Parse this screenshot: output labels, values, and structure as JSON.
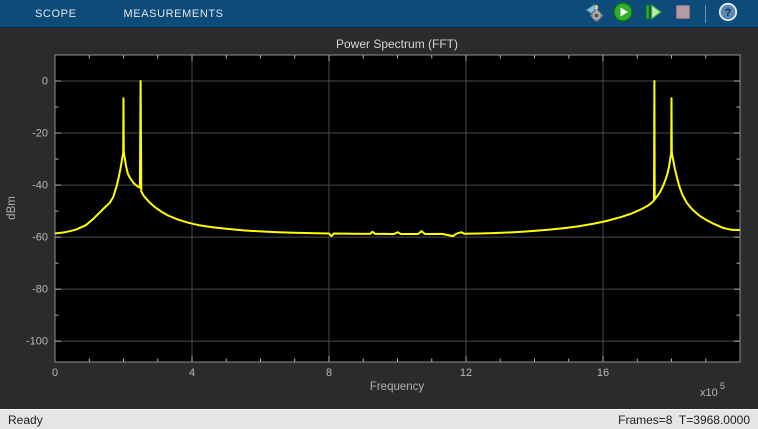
{
  "toolbar": {
    "tabs": [
      {
        "label": "SCOPE"
      },
      {
        "label": "MEASUREMENTS"
      }
    ],
    "buttons": [
      {
        "name": "step-back-settings",
        "icon": "step-back-gear-icon"
      },
      {
        "name": "run",
        "icon": "play-icon"
      },
      {
        "name": "step-forward",
        "icon": "step-forward-icon"
      },
      {
        "name": "stop",
        "icon": "stop-icon",
        "disabled": true
      },
      {
        "name": "help",
        "icon": "help-icon",
        "glyph": "?"
      }
    ]
  },
  "chart_data": {
    "type": "line",
    "title": "Power Spectrum (FFT)",
    "xlabel": "Frequency",
    "ylabel": "dBm",
    "x_multiplier_label": "x10",
    "x_multiplier_exp": "5",
    "xlim": [
      0,
      20
    ],
    "ylim": [
      -108,
      10
    ],
    "xticks": [
      0,
      4,
      8,
      12,
      16
    ],
    "yticks": [
      0,
      -20,
      -40,
      -60,
      -80,
      -100
    ],
    "x_minor_step": 1,
    "y_minor_step": 10,
    "grid": true,
    "legend": "none",
    "line_color": "#ffff00",
    "colors": {
      "plot_bg": "#000000",
      "figure_bg": "#2b2b2b",
      "grid": "#4a4a4a",
      "axis": "#8f8f8f",
      "tick": "#b0b0b0"
    },
    "series": [
      {
        "name": "power-spectrum-trace",
        "points": [
          [
            0,
            -58.6
          ],
          [
            0.3,
            -58.1
          ],
          [
            0.6,
            -57.2
          ],
          [
            0.9,
            -55.4
          ],
          [
            1.1,
            -53.2
          ],
          [
            1.3,
            -50.6
          ],
          [
            1.45,
            -48.6
          ],
          [
            1.6,
            -46.8
          ],
          [
            1.7,
            -44.6
          ],
          [
            1.8,
            -40.3
          ],
          [
            1.87,
            -36.5
          ],
          [
            1.92,
            -33
          ],
          [
            1.96,
            -30
          ],
          [
            1.99,
            -27.5
          ],
          [
            2.0,
            -6.6
          ],
          [
            2.01,
            -27.5
          ],
          [
            2.04,
            -30
          ],
          [
            2.08,
            -33
          ],
          [
            2.13,
            -35.8
          ],
          [
            2.2,
            -37.5
          ],
          [
            2.3,
            -39.3
          ],
          [
            2.4,
            -40.4
          ],
          [
            2.48,
            -41.0
          ],
          [
            2.5,
            0
          ],
          [
            2.52,
            -42.5
          ],
          [
            2.6,
            -44.3
          ],
          [
            2.75,
            -46.5
          ],
          [
            2.9,
            -48.3
          ],
          [
            3.1,
            -50.2
          ],
          [
            3.3,
            -51.7
          ],
          [
            3.6,
            -53.3
          ],
          [
            3.9,
            -54.5
          ],
          [
            4.2,
            -55.4
          ],
          [
            4.6,
            -56.2
          ],
          [
            5.0,
            -56.8
          ],
          [
            5.5,
            -57.4
          ],
          [
            6.0,
            -57.8
          ],
          [
            6.5,
            -58.1
          ],
          [
            7.0,
            -58.3
          ],
          [
            7.6,
            -58.5
          ],
          [
            8.0,
            -58.6
          ],
          [
            8.07,
            -59.6
          ],
          [
            8.14,
            -58.6
          ],
          [
            8.7,
            -58.7
          ],
          [
            9.2,
            -58.75
          ],
          [
            9.27,
            -57.9
          ],
          [
            9.34,
            -58.75
          ],
          [
            9.9,
            -58.8
          ],
          [
            10.0,
            -58.1
          ],
          [
            10.1,
            -58.8
          ],
          [
            10.6,
            -58.8
          ],
          [
            10.7,
            -57.7
          ],
          [
            10.8,
            -58.8
          ],
          [
            11.3,
            -58.75
          ],
          [
            11.62,
            -59.6
          ],
          [
            11.72,
            -58.7
          ],
          [
            11.87,
            -58.1
          ],
          [
            11.95,
            -58.7
          ],
          [
            12.4,
            -58.6
          ],
          [
            12.9,
            -58.4
          ],
          [
            13.4,
            -58.1
          ],
          [
            13.9,
            -57.7
          ],
          [
            14.4,
            -57.2
          ],
          [
            14.9,
            -56.5
          ],
          [
            15.3,
            -55.8
          ],
          [
            15.7,
            -54.9
          ],
          [
            16.1,
            -53.8
          ],
          [
            16.5,
            -52.4
          ],
          [
            16.8,
            -51.1
          ],
          [
            17.1,
            -49.4
          ],
          [
            17.3,
            -48.0
          ],
          [
            17.42,
            -46.8
          ],
          [
            17.49,
            -45.9
          ],
          [
            17.5,
            0
          ],
          [
            17.51,
            -45.5
          ],
          [
            17.58,
            -44.3
          ],
          [
            17.65,
            -43.0
          ],
          [
            17.72,
            -41.3
          ],
          [
            17.8,
            -38.9
          ],
          [
            17.87,
            -36.2
          ],
          [
            17.92,
            -33.4
          ],
          [
            17.96,
            -30.4
          ],
          [
            17.99,
            -27.6
          ],
          [
            18.0,
            -6.6
          ],
          [
            18.01,
            -27.6
          ],
          [
            18.05,
            -30.4
          ],
          [
            18.1,
            -33.8
          ],
          [
            18.16,
            -37.2
          ],
          [
            18.23,
            -40.6
          ],
          [
            18.32,
            -43.8
          ],
          [
            18.45,
            -46.9
          ],
          [
            18.6,
            -49.3
          ],
          [
            18.8,
            -51.6
          ],
          [
            19.0,
            -53.3
          ],
          [
            19.25,
            -55.0
          ],
          [
            19.5,
            -56.4
          ],
          [
            19.75,
            -57.2
          ],
          [
            20,
            -57.3
          ]
        ]
      }
    ]
  },
  "status_bar": {
    "left": "Ready",
    "right": "Frames=8  T=3968.0000"
  }
}
